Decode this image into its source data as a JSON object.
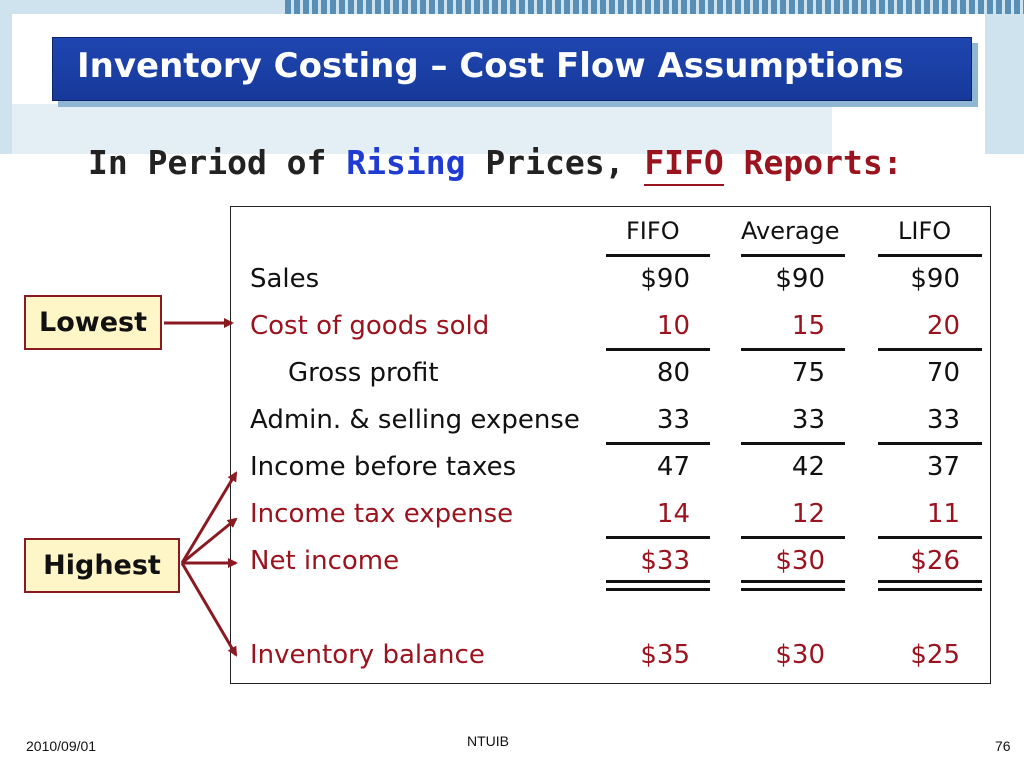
{
  "slide": {
    "title": "Inventory Costing – Cost Flow Assumptions",
    "subtitle_part1": "In Period of ",
    "subtitle_rising": "Rising",
    "subtitle_part2": " Prices, ",
    "subtitle_fifo": "FIFO",
    "subtitle_part3": " Reports:"
  },
  "table": {
    "columns": [
      "FIFO",
      "Average",
      "LIFO"
    ],
    "rows": [
      {
        "label": "Sales",
        "values": [
          "$90",
          "$90",
          "$90"
        ]
      },
      {
        "label": "Cost of goods sold",
        "values": [
          "10",
          "15",
          "20"
        ]
      },
      {
        "label": "Gross profit",
        "values": [
          "80",
          "75",
          "70"
        ]
      },
      {
        "label": "Admin. & selling expense",
        "values": [
          "33",
          "33",
          "33"
        ]
      },
      {
        "label": "Income before taxes",
        "values": [
          "47",
          "42",
          "37"
        ]
      },
      {
        "label": "Income tax expense",
        "values": [
          "14",
          "12",
          "11"
        ]
      },
      {
        "label": "Net income",
        "values": [
          "$33",
          "$30",
          "$26"
        ]
      },
      {
        "label": "Inventory balance",
        "values": [
          "$35",
          "$30",
          "$25"
        ]
      }
    ]
  },
  "callouts": {
    "lowest": "Lowest",
    "highest": "Highest"
  },
  "footer": {
    "date": "2010/09/01",
    "center": "NTUIB",
    "page": "76"
  },
  "colors": {
    "title_bg": "#1f46b0",
    "accent_red": "#9a1420",
    "accent_blue": "#1f3bd1",
    "callout_bg": "#fff6c8"
  }
}
